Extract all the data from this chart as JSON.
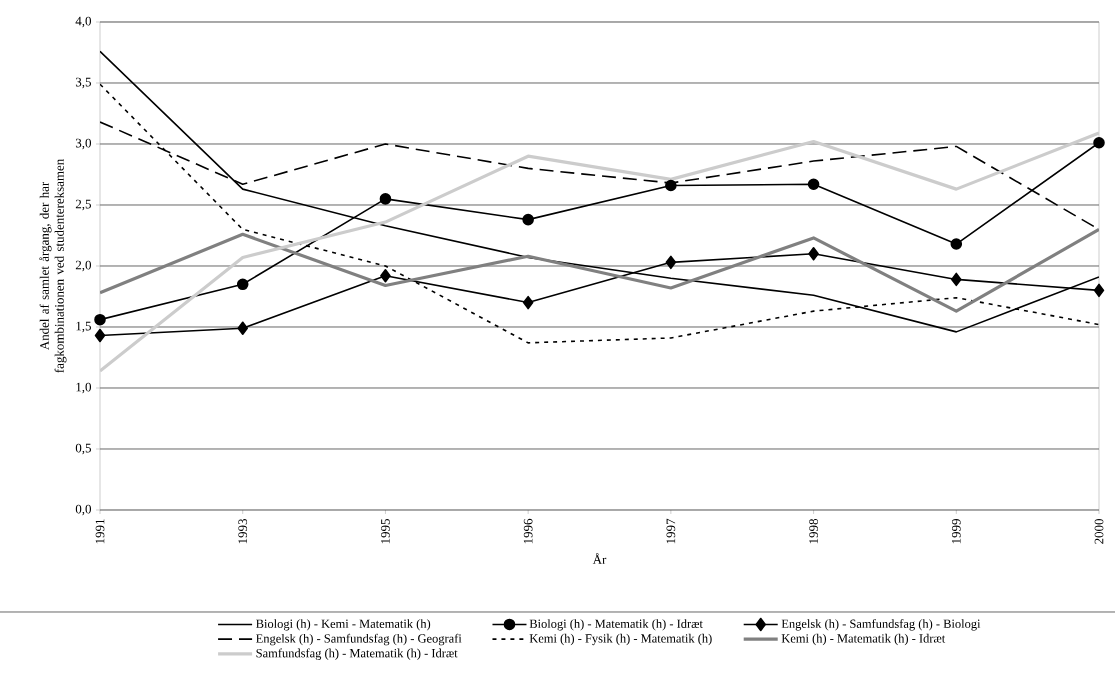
{
  "chart_data": {
    "type": "line",
    "xlabel": "År",
    "ylabel": "Andel af samlet årgang, der har fagkombinationen ved studentereksamen",
    "categories": [
      "1991",
      "1993",
      "1995",
      "1996",
      "1997",
      "1998",
      "1999",
      "2000"
    ],
    "ylim": [
      0,
      4
    ],
    "yticks": [
      {
        "value": 0,
        "label": "0,0"
      },
      {
        "value": 0.5,
        "label": "0,5"
      },
      {
        "value": 1,
        "label": "1,0"
      },
      {
        "value": 1.5,
        "label": "1,5"
      },
      {
        "value": 2,
        "label": "2,0"
      },
      {
        "value": 2.5,
        "label": "2,5"
      },
      {
        "value": 3,
        "label": "3,0"
      },
      {
        "value": 3.5,
        "label": "3,5"
      },
      {
        "value": 4,
        "label": "4,0"
      }
    ],
    "grid": "y",
    "legend": "bottom",
    "series": [
      {
        "name": "Biologi (h) - Kemi - Matematik (h)",
        "color": "#000000",
        "marker": "none",
        "line_style": "solid",
        "values": [
          3.76,
          2.63,
          2.33,
          2.07,
          1.9,
          1.76,
          1.46,
          1.91
        ]
      },
      {
        "name": "Biologi (h) - Matematik (h) - Idræt",
        "color": "#000000",
        "marker": "circle",
        "line_style": "solid",
        "values": [
          1.56,
          1.85,
          2.55,
          2.38,
          2.66,
          2.67,
          2.18,
          3.01
        ]
      },
      {
        "name": "Engelsk (h) - Samfundsfag (h) - Biologi",
        "color": "#000000",
        "marker": "diamond",
        "line_style": "solid",
        "values": [
          1.43,
          1.49,
          1.92,
          1.7,
          2.03,
          2.1,
          1.89,
          1.8
        ]
      },
      {
        "name": "Engelsk (h) - Samfundsfag (h) - Geografi",
        "color": "#000000",
        "marker": "none",
        "line_style": "dashed",
        "values": [
          3.18,
          2.67,
          3.0,
          2.8,
          2.68,
          2.86,
          2.98,
          2.3
        ]
      },
      {
        "name": "Kemi (h) - Fysik (h) - Matematik (h)",
        "color": "#000000",
        "marker": "none",
        "line_style": "dotted",
        "values": [
          3.49,
          2.3,
          2.0,
          1.37,
          1.41,
          1.63,
          1.74,
          1.52
        ]
      },
      {
        "name": "Kemi (h) - Matematik (h) - Idræt",
        "color": "#808080",
        "marker": "none",
        "line_style": "solid",
        "values": [
          1.78,
          2.26,
          1.84,
          2.08,
          1.82,
          2.23,
          1.63,
          2.3
        ]
      },
      {
        "name": "Samfundsfag (h) - Matematik (h) - Idræt",
        "color": "#cccccc",
        "marker": "none",
        "line_style": "solid",
        "values": [
          1.14,
          2.07,
          2.36,
          2.9,
          2.71,
          3.02,
          2.63,
          3.09
        ]
      }
    ]
  }
}
